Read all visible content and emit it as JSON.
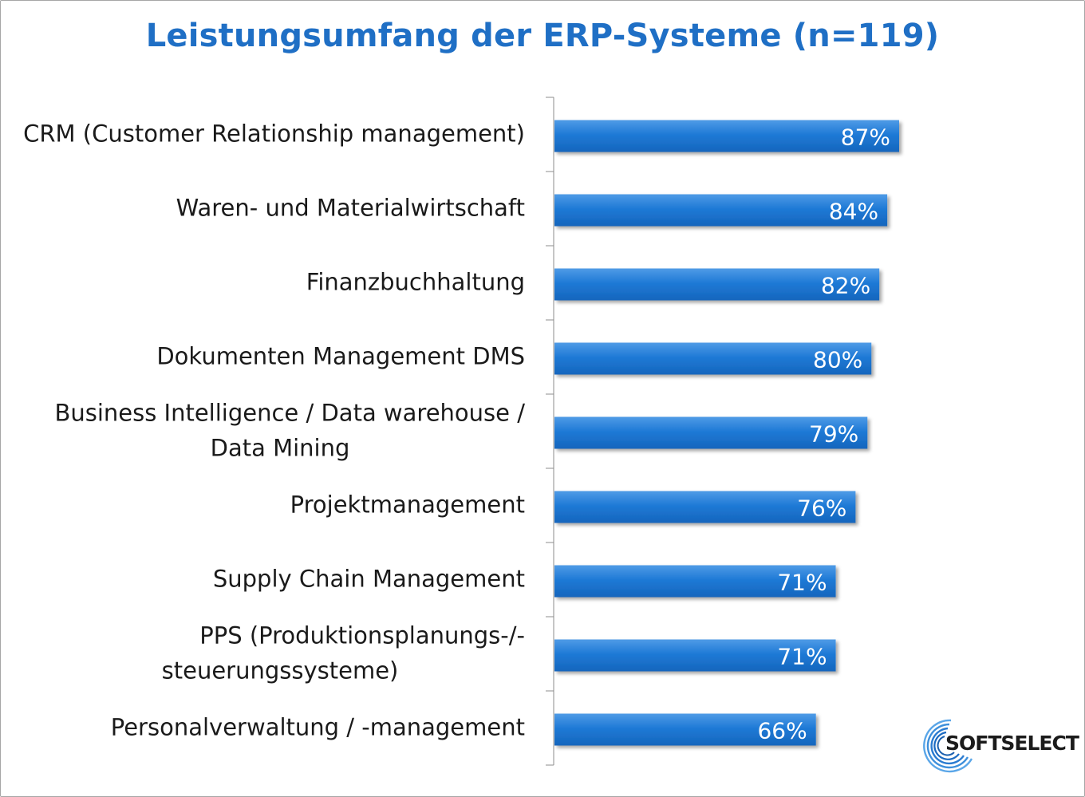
{
  "chart_data": {
    "type": "bar",
    "orientation": "horizontal",
    "title": "Leistungsumfang der ERP-Systeme (n=119)",
    "categories": [
      [
        "CRM (Customer Relationship management)"
      ],
      [
        "Waren- und Materialwirtschaft"
      ],
      [
        "Finanzbuchhaltung"
      ],
      [
        "Dokumenten Management DMS"
      ],
      [
        "Business Intelligence / Data warehouse /",
        "Data Mining"
      ],
      [
        "Projektmanagement"
      ],
      [
        "Supply Chain Management"
      ],
      [
        "PPS (Produktionsplanungs-/-",
        "steuerungssysteme)"
      ],
      [
        "Personalverwaltung / -management"
      ]
    ],
    "values": [
      87,
      84,
      82,
      80,
      79,
      76,
      71,
      71,
      66
    ],
    "value_labels": [
      "87%",
      "84%",
      "82%",
      "80%",
      "79%",
      "76%",
      "71%",
      "71%",
      "66%"
    ],
    "xlim": [
      0,
      100
    ],
    "grid": false,
    "legend": "none",
    "bar_color": "#1f7ad6",
    "title_color": "#1f6fc5"
  },
  "logo": {
    "text": "SoftSelect",
    "display": "SOFTSELECT"
  }
}
